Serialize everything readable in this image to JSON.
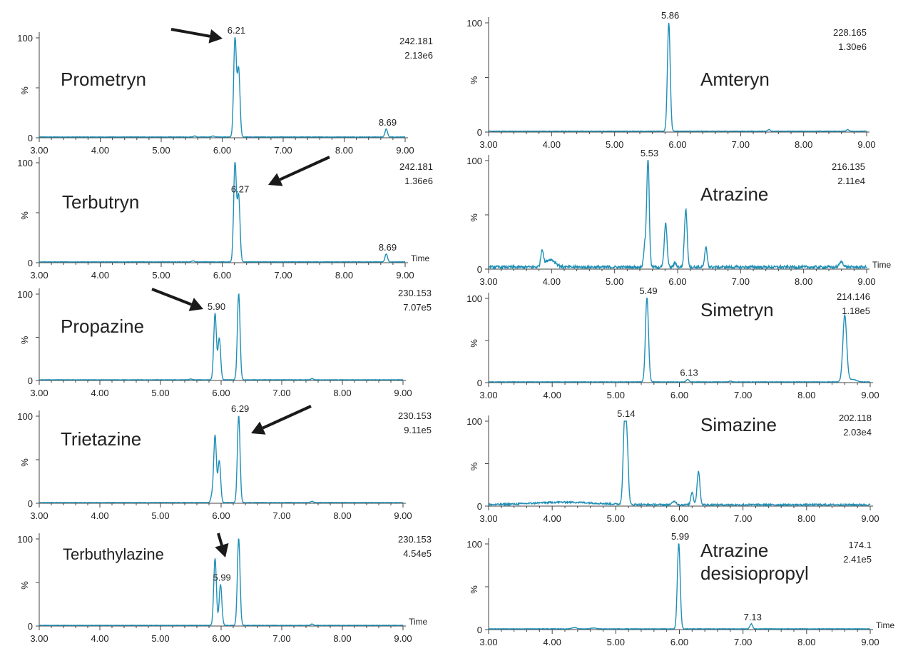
{
  "line_color": "#1f8fb6",
  "axis_color": "#444444",
  "arrow_color": "#1a1a1a",
  "x_axis_title": "Time",
  "y_axis_title": "%",
  "chart_data": [
    {
      "type": "line",
      "title": "Prometryn",
      "mass": "242.181",
      "intensity": "2.13e6",
      "xlim": [
        3.0,
        9.0
      ],
      "ylim": [
        0,
        100
      ],
      "x_ticks": [
        "3.00",
        "4.00",
        "5.00",
        "6.00",
        "7.00",
        "8.00",
        "9.00"
      ],
      "y_ticks": [
        "0",
        "100"
      ],
      "show_time_label": false,
      "peaks": [
        {
          "rt": 6.21,
          "height": 100,
          "width": 0.022,
          "label": "6.21"
        },
        {
          "rt": 6.27,
          "height": 68,
          "width": 0.022,
          "label": ""
        },
        {
          "rt": 8.69,
          "height": 8,
          "width": 0.02,
          "label": "8.69"
        },
        {
          "rt": 5.55,
          "height": 1,
          "width": 0.02,
          "label": ""
        },
        {
          "rt": 5.85,
          "height": 1,
          "width": 0.02,
          "label": ""
        }
      ],
      "noise": 0.4
    },
    {
      "type": "line",
      "title": "Amteryn",
      "mass": "228.165",
      "intensity": "1.30e6",
      "xlim": [
        3.0,
        9.0
      ],
      "ylim": [
        0,
        100
      ],
      "x_ticks": [
        "3.00",
        "4.00",
        "5.00",
        "6.00",
        "7.00",
        "8.00",
        "9.00"
      ],
      "y_ticks": [
        "0",
        "100"
      ],
      "show_time_label": false,
      "peaks": [
        {
          "rt": 5.86,
          "height": 100,
          "width": 0.022,
          "label": "5.86"
        },
        {
          "rt": 7.45,
          "height": 1.5,
          "width": 0.02,
          "label": ""
        },
        {
          "rt": 8.7,
          "height": 1.5,
          "width": 0.02,
          "label": ""
        }
      ],
      "noise": 0.4
    },
    {
      "type": "line",
      "title": "Terbutryn",
      "mass": "242.181",
      "intensity": "1.36e6",
      "xlim": [
        3.0,
        9.0
      ],
      "ylim": [
        0,
        100
      ],
      "x_ticks": [
        "3.00",
        "4.00",
        "5.00",
        "6.00",
        "7.00",
        "8.00",
        "9.00"
      ],
      "y_ticks": [
        "0",
        "100"
      ],
      "show_time_label": true,
      "peaks": [
        {
          "rt": 6.21,
          "height": 100,
          "width": 0.022,
          "label": ""
        },
        {
          "rt": 6.27,
          "height": 66,
          "width": 0.022,
          "label": "6.27"
        },
        {
          "rt": 8.69,
          "height": 8,
          "width": 0.02,
          "label": "8.69"
        },
        {
          "rt": 5.52,
          "height": 1,
          "width": 0.02,
          "label": ""
        }
      ],
      "noise": 0.4
    },
    {
      "type": "line",
      "title": "Atrazine",
      "mass": "216.135",
      "intensity": "2.11e4",
      "xlim": [
        3.0,
        9.0
      ],
      "ylim": [
        0,
        100
      ],
      "x_ticks": [
        "3.00",
        "4.00",
        "5.00",
        "6.00",
        "7.00",
        "8.00",
        "9.00"
      ],
      "y_ticks": [
        "0",
        "100"
      ],
      "show_time_label": true,
      "peaks": [
        {
          "rt": 5.53,
          "height": 100,
          "width": 0.02,
          "label": "5.53"
        },
        {
          "rt": 5.48,
          "height": 20,
          "width": 0.02,
          "label": ""
        },
        {
          "rt": 5.81,
          "height": 40,
          "width": 0.022,
          "label": ""
        },
        {
          "rt": 6.13,
          "height": 53,
          "width": 0.022,
          "label": ""
        },
        {
          "rt": 6.45,
          "height": 18,
          "width": 0.02,
          "label": ""
        },
        {
          "rt": 3.85,
          "height": 15,
          "width": 0.02,
          "label": ""
        },
        {
          "rt": 3.98,
          "height": 7,
          "width": 0.08,
          "label": ""
        },
        {
          "rt": 5.96,
          "height": 4,
          "width": 0.02,
          "label": ""
        },
        {
          "rt": 8.6,
          "height": 5,
          "width": 0.03,
          "label": ""
        }
      ],
      "noise": 2.5
    },
    {
      "type": "line",
      "title": "Propazine",
      "mass": "230.153",
      "intensity": "7.07e5",
      "xlim": [
        3.0,
        9.0
      ],
      "ylim": [
        0,
        100
      ],
      "x_ticks": [
        "3.00",
        "4.00",
        "5.00",
        "6.00",
        "7.00",
        "8.00",
        "9.00"
      ],
      "y_ticks": [
        "0",
        "100"
      ],
      "show_time_label": false,
      "peaks": [
        {
          "rt": 5.9,
          "height": 77,
          "width": 0.022,
          "label": "5.90"
        },
        {
          "rt": 5.97,
          "height": 48,
          "width": 0.022,
          "label": ""
        },
        {
          "rt": 6.29,
          "height": 100,
          "width": 0.022,
          "label": ""
        },
        {
          "rt": 5.5,
          "height": 1,
          "width": 0.02,
          "label": ""
        },
        {
          "rt": 7.5,
          "height": 1.5,
          "width": 0.02,
          "label": ""
        }
      ],
      "noise": 0.4
    },
    {
      "type": "line",
      "title": "Simetryn",
      "mass": "214.146",
      "intensity": "1.18e5",
      "xlim": [
        3.0,
        9.0
      ],
      "ylim": [
        0,
        100
      ],
      "x_ticks": [
        "3.00",
        "4.00",
        "5.00",
        "6.00",
        "7.00",
        "8.00",
        "9.00"
      ],
      "y_ticks": [
        "0",
        "100"
      ],
      "show_time_label": false,
      "peaks": [
        {
          "rt": 5.49,
          "height": 100,
          "width": 0.024,
          "label": "5.49"
        },
        {
          "rt": 6.13,
          "height": 3,
          "width": 0.02,
          "label": "6.13"
        },
        {
          "rt": 8.6,
          "height": 79,
          "width": 0.03,
          "label": ""
        },
        {
          "rt": 8.72,
          "height": 3,
          "width": 0.06,
          "label": ""
        },
        {
          "rt": 6.8,
          "height": 1,
          "width": 0.02,
          "label": ""
        }
      ],
      "noise": 0.5
    },
    {
      "type": "line",
      "title": "Trietazine",
      "mass": "230.153",
      "intensity": "9.11e5",
      "xlim": [
        3.0,
        9.0
      ],
      "ylim": [
        0,
        100
      ],
      "x_ticks": [
        "3.00",
        "4.00",
        "5.00",
        "6.00",
        "7.00",
        "8.00",
        "9.00"
      ],
      "y_ticks": [
        "0",
        "100"
      ],
      "show_time_label": false,
      "peaks": [
        {
          "rt": 5.9,
          "height": 77,
          "width": 0.022,
          "label": ""
        },
        {
          "rt": 5.97,
          "height": 48,
          "width": 0.022,
          "label": ""
        },
        {
          "rt": 6.29,
          "height": 100,
          "width": 0.022,
          "label": "6.29"
        },
        {
          "rt": 5.85,
          "height": 8,
          "width": 0.02,
          "label": ""
        },
        {
          "rt": 7.5,
          "height": 1.5,
          "width": 0.02,
          "label": ""
        }
      ],
      "noise": 0.4
    },
    {
      "type": "line",
      "title": "Simazine",
      "mass": "202.118",
      "intensity": "2.03e4",
      "xlim": [
        3.0,
        9.0
      ],
      "ylim": [
        0,
        100
      ],
      "x_ticks": [
        "3.00",
        "4.00",
        "5.00",
        "6.00",
        "7.00",
        "8.00",
        "9.00"
      ],
      "y_ticks": [
        "0",
        "100"
      ],
      "show_time_label": false,
      "peaks": [
        {
          "rt": 5.14,
          "height": 100,
          "width": 0.024,
          "label": "5.14"
        },
        {
          "rt": 5.18,
          "height": 55,
          "width": 0.02,
          "label": ""
        },
        {
          "rt": 6.3,
          "height": 40,
          "width": 0.022,
          "label": ""
        },
        {
          "rt": 6.2,
          "height": 15,
          "width": 0.02,
          "label": ""
        },
        {
          "rt": 5.92,
          "height": 4,
          "width": 0.03,
          "label": ""
        },
        {
          "rt": 4.2,
          "height": 3,
          "width": 0.5,
          "label": ""
        }
      ],
      "noise": 2.0
    },
    {
      "type": "line",
      "title": "Terbuthylazine",
      "mass": "230.153",
      "intensity": "4.54e5",
      "xlim": [
        3.0,
        9.0
      ],
      "ylim": [
        0,
        100
      ],
      "x_ticks": [
        "3.00",
        "4.00",
        "5.00",
        "6.00",
        "7.00",
        "8.00",
        "9.00"
      ],
      "y_ticks": [
        "0",
        "100"
      ],
      "show_time_label": true,
      "peaks": [
        {
          "rt": 5.9,
          "height": 77,
          "width": 0.022,
          "label": ""
        },
        {
          "rt": 5.99,
          "height": 47,
          "width": 0.022,
          "label": "5.99"
        },
        {
          "rt": 6.29,
          "height": 100,
          "width": 0.022,
          "label": ""
        },
        {
          "rt": 7.5,
          "height": 1.5,
          "width": 0.02,
          "label": ""
        }
      ],
      "noise": 0.4
    },
    {
      "type": "line",
      "title": "Atrazine desisiopropyl",
      "title_lines": [
        "Atrazine",
        "desisiopropyl"
      ],
      "mass": "174.1",
      "intensity": "2.41e5",
      "xlim": [
        3.0,
        9.0
      ],
      "ylim": [
        0,
        100
      ],
      "x_ticks": [
        "3.00",
        "4.00",
        "5.00",
        "6.00",
        "7.00",
        "8.00",
        "9.00"
      ],
      "y_ticks": [
        "0",
        "100"
      ],
      "show_time_label": true,
      "peaks": [
        {
          "rt": 5.99,
          "height": 100,
          "width": 0.022,
          "label": "5.99"
        },
        {
          "rt": 7.13,
          "height": 6,
          "width": 0.02,
          "label": "7.13"
        },
        {
          "rt": 4.35,
          "height": 1.5,
          "width": 0.04,
          "label": ""
        },
        {
          "rt": 4.65,
          "height": 1,
          "width": 0.04,
          "label": ""
        }
      ],
      "noise": 0.5
    }
  ]
}
